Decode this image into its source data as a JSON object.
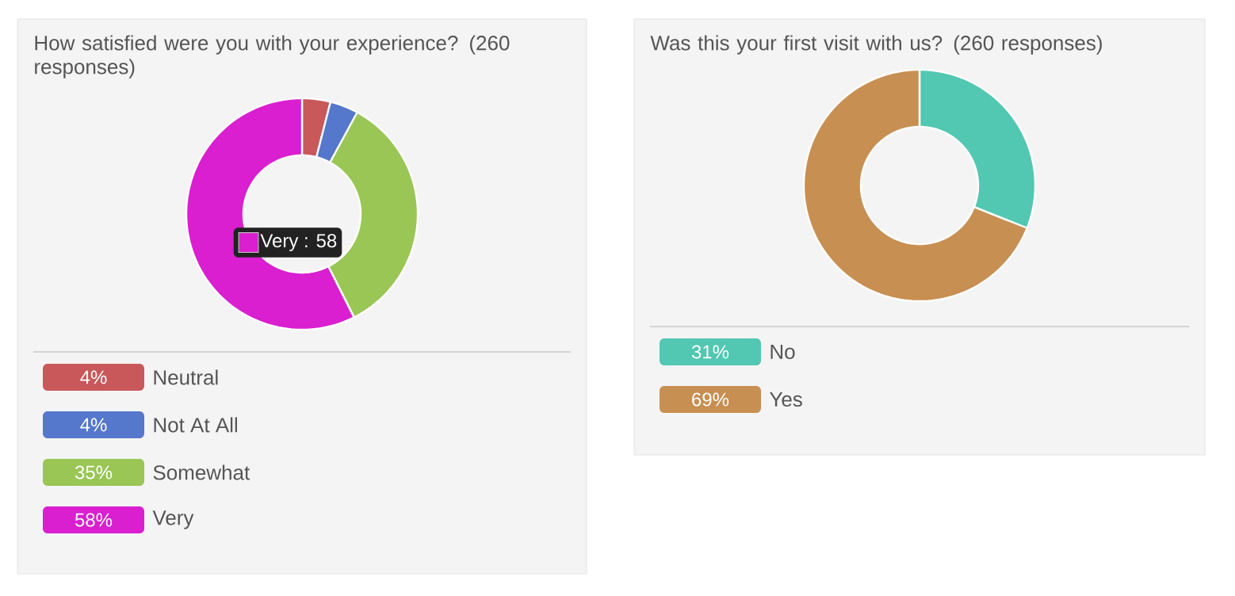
{
  "chart_data": [
    {
      "type": "donut",
      "title": "How satisfied were you with your experience? (260 responses)",
      "categories": [
        "Neutral",
        "Not At All",
        "Somewhat",
        "Very"
      ],
      "values": [
        4,
        4,
        35,
        58
      ],
      "colors": [
        "#c9585a",
        "#5577cc",
        "#99c655",
        "#d91fcf"
      ],
      "value_labels": [
        "4%",
        "4%",
        "35%",
        "58%"
      ],
      "legend": "bottom",
      "annotations": [
        "Very : 58"
      ]
    },
    {
      "type": "donut",
      "title": "Was this your first visit with us? (260 responses)",
      "categories": [
        "No",
        "Yes"
      ],
      "values": [
        31,
        69
      ],
      "colors": [
        "#52c7b1",
        "#c88f52"
      ],
      "value_labels": [
        "31%",
        "69%"
      ],
      "legend": "bottom"
    }
  ]
}
